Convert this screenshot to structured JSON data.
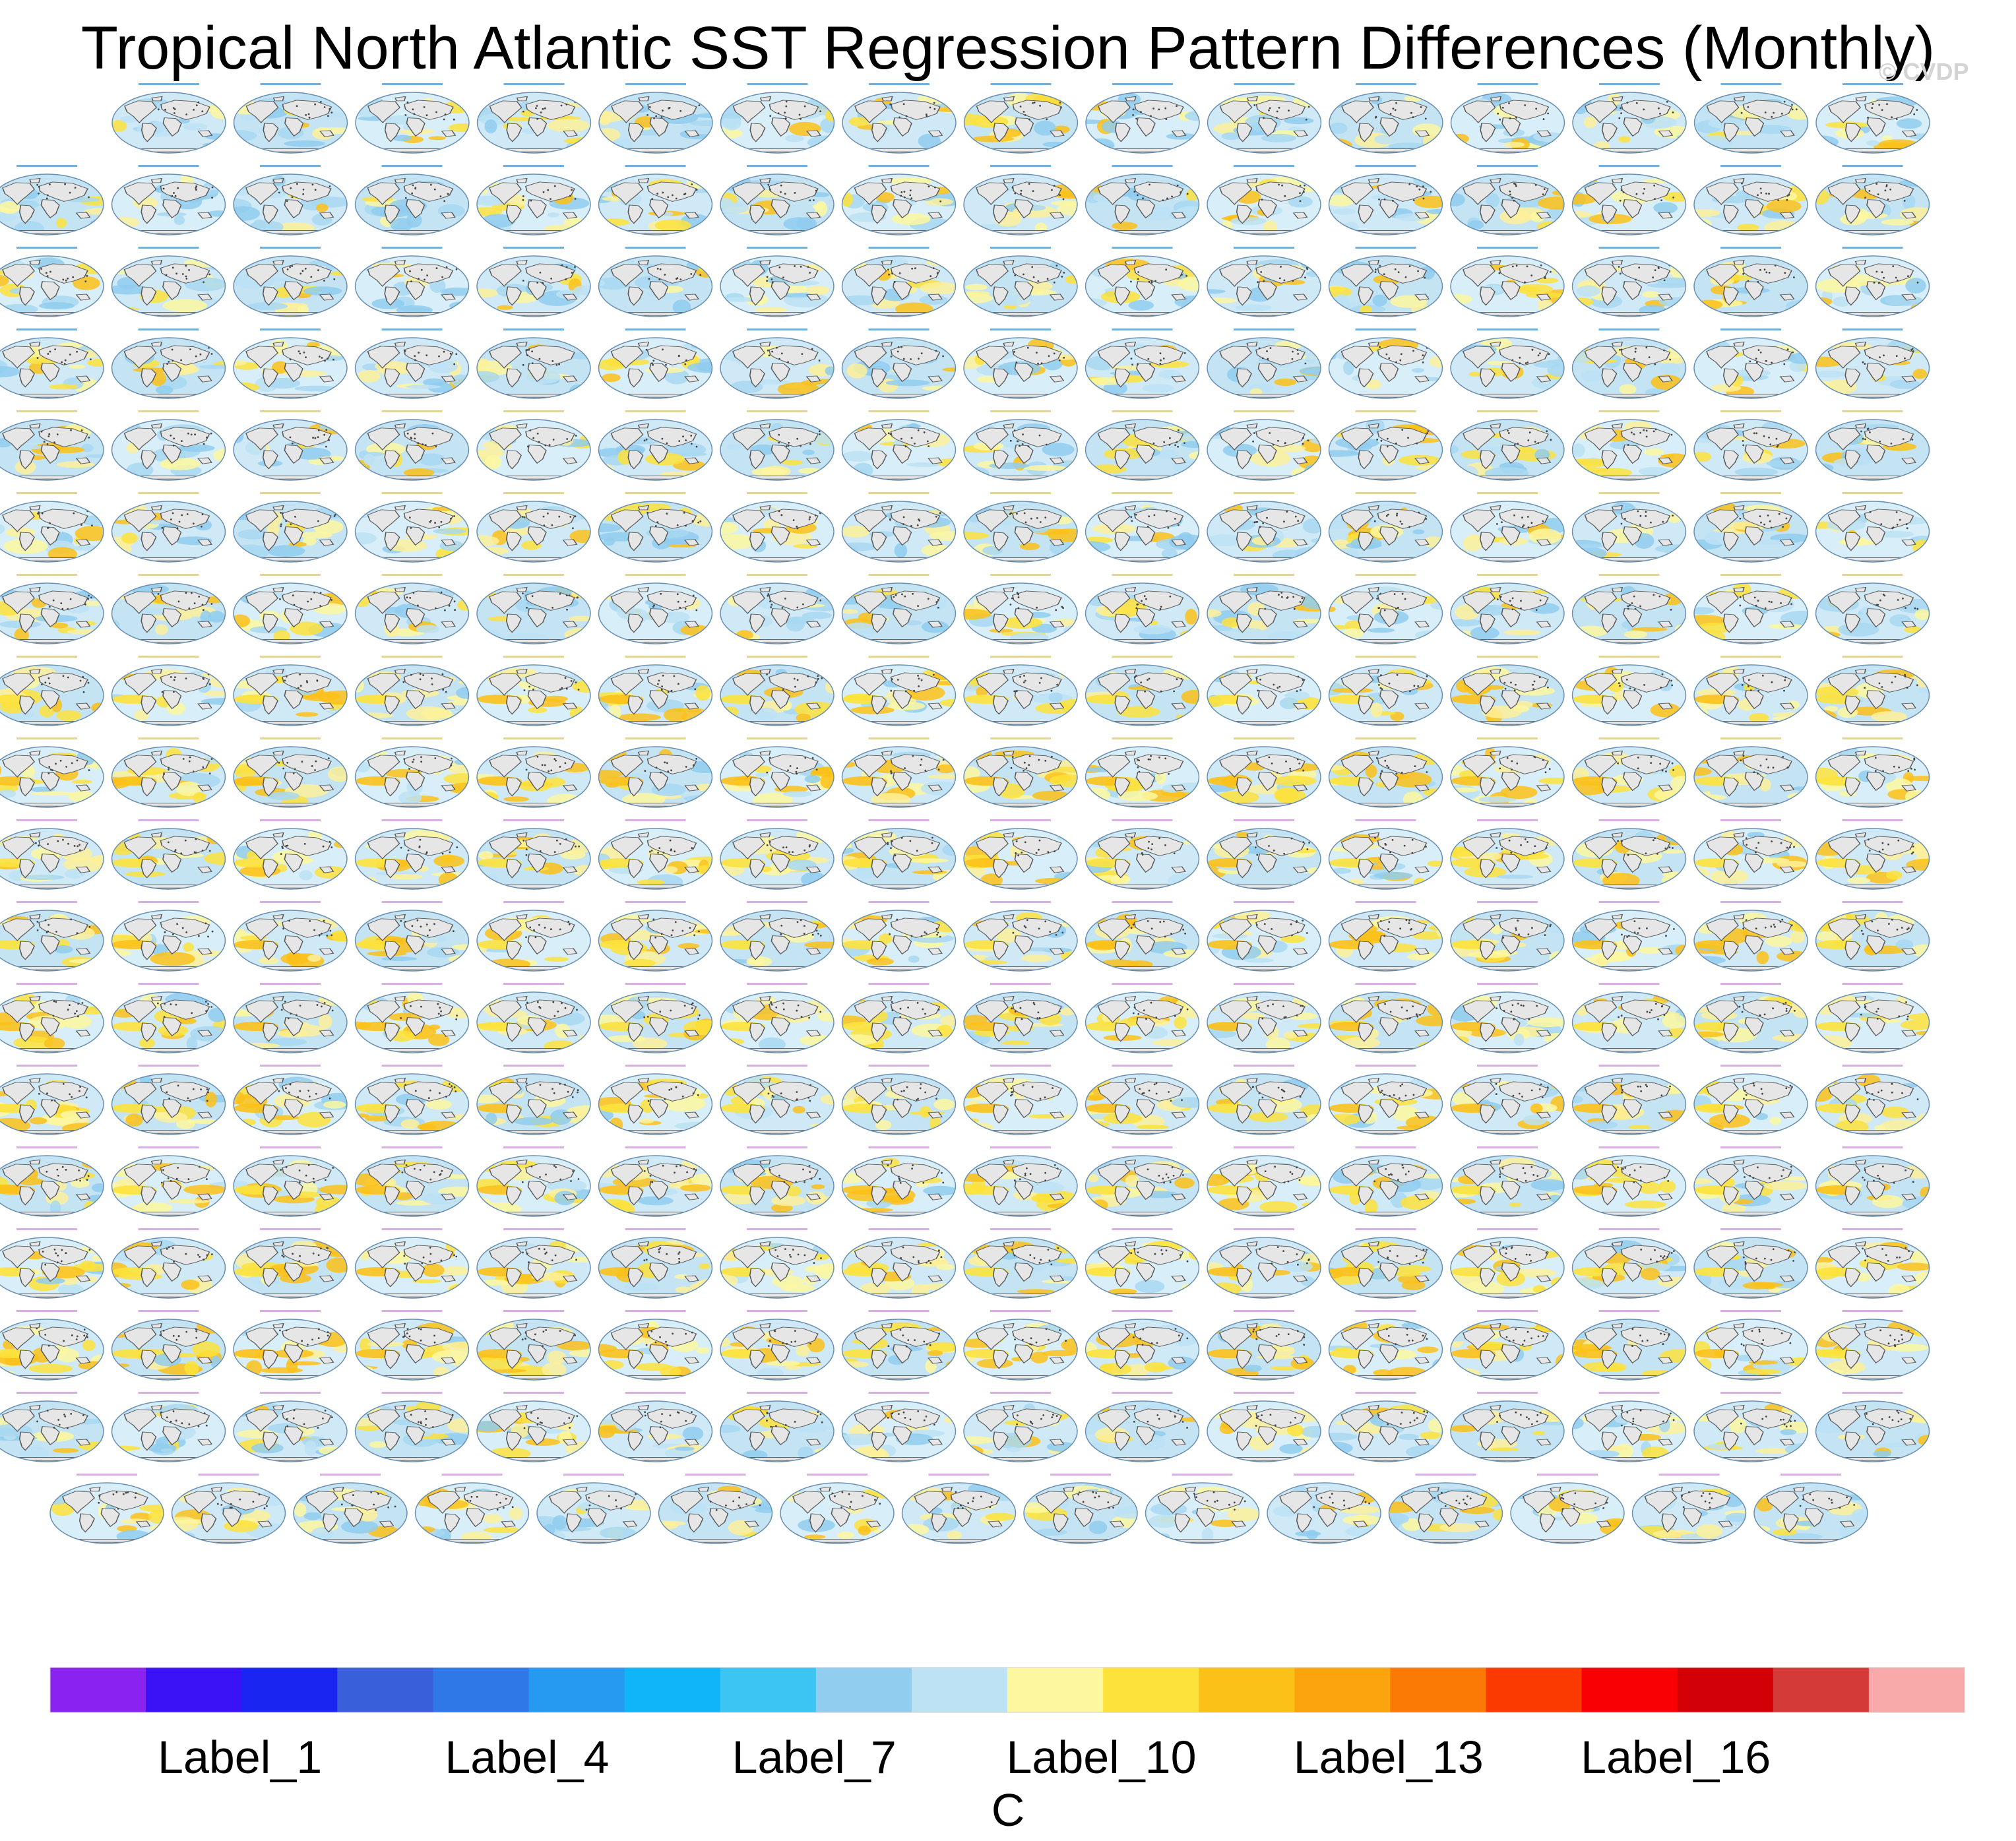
{
  "title": "Tropical North Atlantic SST Regression Pattern Differences (Monthly)",
  "watermark": "© CVDP",
  "chart_data": {
    "type": "heatmap",
    "description_kind": "small-multiple global SST regression difference maps",
    "panel_rows": [
      15,
      16,
      16,
      16,
      16,
      16,
      16,
      16,
      16,
      16,
      16,
      16,
      16,
      16,
      16,
      16,
      16,
      15
    ],
    "first_panel_title": "HadISST - ERSST v5",
    "panel_title_suffix": "ERSST v5",
    "colorbar": {
      "unit": "C",
      "colors": [
        "#8a22f0",
        "#3b12f5",
        "#1a25f2",
        "#3a5fdb",
        "#2f78e8",
        "#2699f0",
        "#0fb5f8",
        "#3cc4f2",
        "#90cdee",
        "#bde2f4",
        "#fdf7a0",
        "#fde23c",
        "#fcc119",
        "#fca40d",
        "#fb7a05",
        "#fb3a02",
        "#f90004",
        "#d20006",
        "#d43a38",
        "#f8aaaa"
      ],
      "labels": [
        {
          "text": "Label_1",
          "index": 1
        },
        {
          "text": "Label_4",
          "index": 4
        },
        {
          "text": "Label_7",
          "index": 7
        },
        {
          "text": "Label_10",
          "index": 10
        },
        {
          "text": "Label_13",
          "index": 13
        },
        {
          "text": "Label_16",
          "index": 16
        }
      ]
    }
  }
}
